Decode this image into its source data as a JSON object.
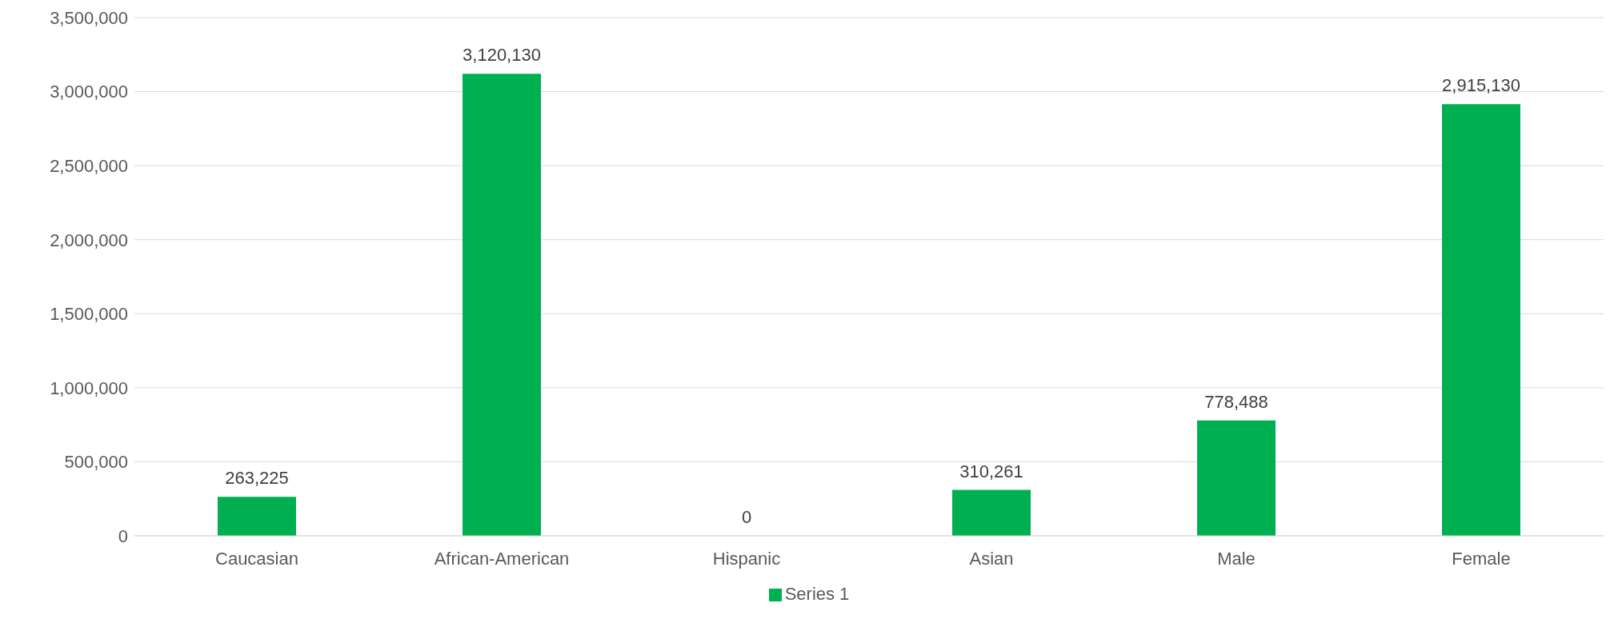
{
  "chart_data": {
    "type": "bar",
    "categories": [
      "Caucasian",
      "African-American",
      "Hispanic",
      "Asian",
      "Male",
      "Female"
    ],
    "series": [
      {
        "name": "Series 1",
        "color": "#00b050",
        "values": [
          263225,
          3120130,
          0,
          310261,
          778488,
          2915130
        ],
        "value_labels": [
          "263,225",
          "3,120,130",
          "0",
          "310,261",
          "778,488",
          "2,915,130"
        ]
      }
    ],
    "ylim": [
      0,
      3500000
    ],
    "yticks": [
      {
        "value": 0,
        "label": "0"
      },
      {
        "value": 500000,
        "label": "500,000"
      },
      {
        "value": 1000000,
        "label": "1,000,000"
      },
      {
        "value": 1500000,
        "label": "1,500,000"
      },
      {
        "value": 2000000,
        "label": "2,000,000"
      },
      {
        "value": 2500000,
        "label": "2,500,000"
      },
      {
        "value": 3000000,
        "label": "3,000,000"
      },
      {
        "value": 3500000,
        "label": "3,500,000"
      }
    ],
    "grid": "y",
    "legend": "bottom"
  }
}
